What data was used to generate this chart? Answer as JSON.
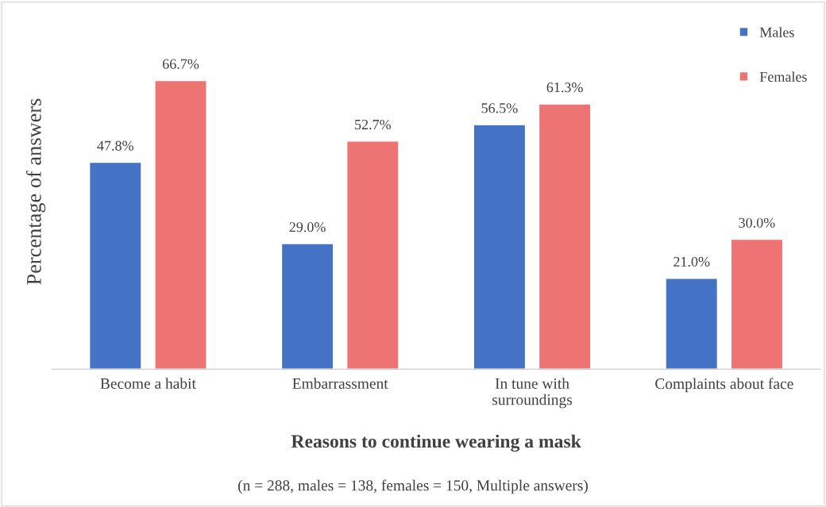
{
  "chart_data": {
    "type": "bar",
    "xlabel": "Reasons to continue wearing a mask",
    "ylabel": "Percentage of answers",
    "annotations": [
      "(n = 288, males = 138, females = 150, Multiple answers)"
    ],
    "categories": [
      "Become a habit",
      "Embarrassment",
      "In tune with\nsurroundings",
      "Complaints about face"
    ],
    "series": [
      {
        "name": "Males",
        "color": "#4472c4",
        "values": [
          47.8,
          29.0,
          56.5,
          21.0
        ],
        "value_labels": [
          "47.8%",
          "29.0%",
          "56.5%",
          "21.0%"
        ]
      },
      {
        "name": "Females",
        "color": "#ed7472",
        "values": [
          66.7,
          52.7,
          61.3,
          30.0
        ],
        "value_labels": [
          "66.7%",
          "52.7%",
          "61.3%",
          "30.0%"
        ]
      }
    ],
    "legend": "top right",
    "grid": false
  }
}
